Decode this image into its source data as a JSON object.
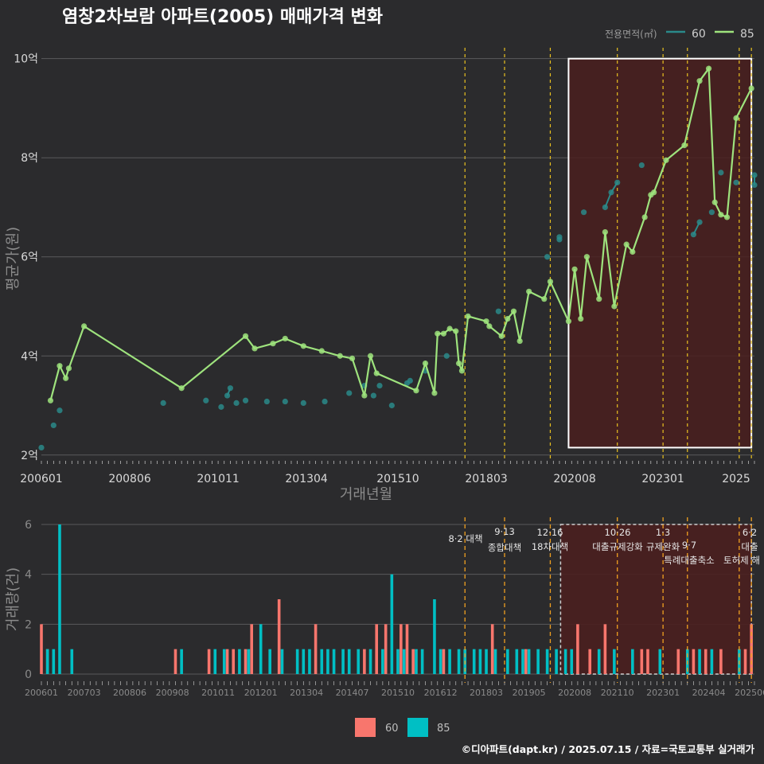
{
  "title": "염창2차보람 아파트(2005) 매매가격 변화",
  "footer": "©디아파트(dapt.kr) / 2025.07.15 / 자료=국토교통부 실거래가",
  "colors": {
    "background": "#2b2b2d",
    "grid": "#5a5a5c",
    "s60": "#2a8a8a",
    "s85": "#9ee37d",
    "bar60": "#f8766d",
    "bar85": "#00bfc4",
    "policy_line": "#e8c020",
    "highlight_fill": "#4a1f1f",
    "highlight_border": "#ffffff"
  },
  "chart_data": [
    {
      "type": "line",
      "name": "price",
      "ylabel": "평균가(원)",
      "xlabel": "거래년월",
      "legend_title": "전용면적(㎡)",
      "legend_position": "top-right",
      "xlim": [
        "2006-01",
        "2025-07"
      ],
      "ylim": [
        1.9,
        10.3
      ],
      "x_ticks": [
        "200601",
        "200806",
        "201011",
        "201304",
        "201510",
        "201803",
        "202008",
        "202301",
        "2025"
      ],
      "y_ticks": [
        2,
        4,
        6,
        8,
        10
      ],
      "y_tick_labels": [
        "2억",
        "4억",
        "6억",
        "8억",
        "10억"
      ],
      "grid": true,
      "highlight_range": [
        "2020-06",
        "2025-06"
      ],
      "highlight_y": [
        2.15,
        10.0
      ],
      "policy_dates": [
        "2017-08",
        "2018-09",
        "2019-12",
        "2021-10",
        "2023-01",
        "2023-09",
        "2025-02",
        "2025-06"
      ],
      "series": [
        {
          "name": "60",
          "values": [
            [
              "2006-01",
              2.15
            ],
            [
              "2006-05",
              2.6
            ],
            [
              "2006-07",
              2.9
            ],
            [
              "2009-05",
              3.05
            ],
            [
              "2010-07",
              3.1
            ],
            [
              "2010-12",
              2.97
            ],
            [
              "2011-02",
              3.2
            ],
            [
              "2011-03",
              3.35
            ],
            [
              "2011-05",
              3.05
            ],
            [
              "2011-08",
              3.1
            ],
            [
              "2012-03",
              3.08
            ],
            [
              "2012-09",
              3.08
            ],
            [
              "2013-03",
              3.05
            ],
            [
              "2013-10",
              3.08
            ],
            [
              "2014-06",
              3.25
            ],
            [
              "2014-11",
              3.4
            ],
            [
              "2015-02",
              3.2
            ],
            [
              "2015-04",
              3.4
            ],
            [
              "2015-08",
              3.0
            ],
            [
              "2016-01",
              3.45
            ],
            [
              "2016-02",
              3.5
            ],
            [
              "2016-07",
              3.7
            ],
            [
              "2017-02",
              4.0
            ],
            [
              "2018-07",
              4.9
            ],
            [
              "2019-11",
              6.0
            ],
            [
              "2020-03",
              6.35
            ],
            [
              "2020-03",
              6.4
            ],
            [
              "2020-11",
              6.9
            ],
            [
              "2021-06",
              7.0
            ],
            [
              "2021-08",
              7.3
            ],
            [
              "2021-10",
              7.5
            ],
            [
              "2022-06",
              7.85
            ],
            [
              "2023-11",
              6.45
            ],
            [
              "2024-01",
              6.7
            ],
            [
              "2024-05",
              6.9
            ],
            [
              "2024-08",
              7.7
            ],
            [
              "2025-01",
              7.5
            ],
            [
              "2025-07",
              7.45
            ],
            [
              "2025-07",
              7.65
            ]
          ]
        },
        {
          "name": "85",
          "values": [
            [
              "2006-04",
              3.1
            ],
            [
              "2006-07",
              3.8
            ],
            [
              "2006-09",
              3.55
            ],
            [
              "2006-10",
              3.75
            ],
            [
              "2007-03",
              4.6
            ],
            [
              "2009-11",
              3.35
            ],
            [
              "2011-08",
              4.4
            ],
            [
              "2011-11",
              4.15
            ],
            [
              "2012-05",
              4.25
            ],
            [
              "2012-09",
              4.35
            ],
            [
              "2013-03",
              4.2
            ],
            [
              "2013-09",
              4.1
            ],
            [
              "2014-03",
              4.0
            ],
            [
              "2014-07",
              3.95
            ],
            [
              "2014-11",
              3.2
            ],
            [
              "2015-01",
              4.0
            ],
            [
              "2015-03",
              3.65
            ],
            [
              "2016-04",
              3.3
            ],
            [
              "2016-07",
              3.85
            ],
            [
              "2016-10",
              3.25
            ],
            [
              "2016-11",
              4.45
            ],
            [
              "2017-01",
              4.45
            ],
            [
              "2017-03",
              4.55
            ],
            [
              "2017-05",
              4.5
            ],
            [
              "2017-06",
              3.85
            ],
            [
              "2017-07",
              3.7
            ],
            [
              "2017-09",
              4.8
            ],
            [
              "2018-03",
              4.7
            ],
            [
              "2018-04",
              4.6
            ],
            [
              "2018-08",
              4.4
            ],
            [
              "2018-10",
              4.75
            ],
            [
              "2018-12",
              4.9
            ],
            [
              "2019-02",
              4.3
            ],
            [
              "2019-05",
              5.3
            ],
            [
              "2019-10",
              5.15
            ],
            [
              "2019-12",
              5.5
            ],
            [
              "2020-06",
              4.7
            ],
            [
              "2020-08",
              5.75
            ],
            [
              "2020-10",
              4.75
            ],
            [
              "2020-12",
              6.0
            ],
            [
              "2021-04",
              5.15
            ],
            [
              "2021-06",
              6.5
            ],
            [
              "2021-09",
              5.0
            ],
            [
              "2022-01",
              6.25
            ],
            [
              "2022-03",
              6.1
            ],
            [
              "2022-07",
              6.8
            ],
            [
              "2022-09",
              7.25
            ],
            [
              "2022-10",
              7.3
            ],
            [
              "2023-02",
              7.95
            ],
            [
              "2023-08",
              8.25
            ],
            [
              "2024-01",
              9.55
            ],
            [
              "2024-04",
              9.8
            ],
            [
              "2024-06",
              7.1
            ],
            [
              "2024-08",
              6.85
            ],
            [
              "2024-10",
              6.8
            ],
            [
              "2025-01",
              8.8
            ],
            [
              "2025-06",
              9.4
            ]
          ]
        }
      ]
    },
    {
      "type": "bar",
      "name": "volume",
      "ylabel": "거래량(건)",
      "ylim": [
        0,
        6
      ],
      "y_ticks": [
        0,
        2,
        4,
        6
      ],
      "x_ticks": [
        "200601",
        "200703",
        "200806",
        "200908",
        "201011",
        "201201",
        "201304",
        "201407",
        "201510",
        "201612",
        "201803",
        "201905",
        "202008",
        "202110",
        "202301",
        "202404",
        "202506"
      ],
      "legend_position": "bottom",
      "series": [
        {
          "name": "60",
          "values": [
            [
              "2006-01",
              2
            ],
            [
              "2006-03",
              1
            ],
            [
              "2009-09",
              1
            ],
            [
              "2010-08",
              1
            ],
            [
              "2011-02",
              1
            ],
            [
              "2011-04",
              1
            ],
            [
              "2011-08",
              1
            ],
            [
              "2011-10",
              2
            ],
            [
              "2012-07",
              3
            ],
            [
              "2013-07",
              2
            ],
            [
              "2014-11",
              1
            ],
            [
              "2015-03",
              2
            ],
            [
              "2015-06",
              2
            ],
            [
              "2015-11",
              2
            ],
            [
              "2016-01",
              2
            ],
            [
              "2016-03",
              1
            ],
            [
              "2017-01",
              1
            ],
            [
              "2018-05",
              2
            ],
            [
              "2019-04",
              1
            ],
            [
              "2020-09",
              2
            ],
            [
              "2021-01",
              1
            ],
            [
              "2021-06",
              2
            ],
            [
              "2022-06",
              1
            ],
            [
              "2022-08",
              1
            ],
            [
              "2023-06",
              1
            ],
            [
              "2023-11",
              1
            ],
            [
              "2024-03",
              1
            ],
            [
              "2024-08",
              1
            ],
            [
              "2025-04",
              1
            ],
            [
              "2025-06",
              2
            ]
          ]
        },
        {
          "name": "85",
          "values": [
            [
              "2006-03",
              1
            ],
            [
              "2006-05",
              1
            ],
            [
              "2006-07",
              6
            ],
            [
              "2006-11",
              1
            ],
            [
              "2009-11",
              1
            ],
            [
              "2010-10",
              1
            ],
            [
              "2011-01",
              1
            ],
            [
              "2011-06",
              1
            ],
            [
              "2011-09",
              1
            ],
            [
              "2012-01",
              2
            ],
            [
              "2012-04",
              1
            ],
            [
              "2012-08",
              1
            ],
            [
              "2013-01",
              1
            ],
            [
              "2013-03",
              1
            ],
            [
              "2013-05",
              1
            ],
            [
              "2013-09",
              1
            ],
            [
              "2013-11",
              1
            ],
            [
              "2014-01",
              1
            ],
            [
              "2014-04",
              1
            ],
            [
              "2014-06",
              1
            ],
            [
              "2014-09",
              1
            ],
            [
              "2015-01",
              1
            ],
            [
              "2015-05",
              1
            ],
            [
              "2015-08",
              4
            ],
            [
              "2015-10",
              1
            ],
            [
              "2015-12",
              1
            ],
            [
              "2016-04",
              1
            ],
            [
              "2016-06",
              1
            ],
            [
              "2016-10",
              3
            ],
            [
              "2016-12",
              1
            ],
            [
              "2017-03",
              1
            ],
            [
              "2017-06",
              1
            ],
            [
              "2017-08",
              1
            ],
            [
              "2017-11",
              1
            ],
            [
              "2018-01",
              1
            ],
            [
              "2018-03",
              1
            ],
            [
              "2018-06",
              1
            ],
            [
              "2018-10",
              1
            ],
            [
              "2019-01",
              1
            ],
            [
              "2019-03",
              1
            ],
            [
              "2019-05",
              1
            ],
            [
              "2019-08",
              1
            ],
            [
              "2019-11",
              1
            ],
            [
              "2020-02",
              1
            ],
            [
              "2020-05",
              1
            ],
            [
              "2020-07",
              1
            ],
            [
              "2021-04",
              1
            ],
            [
              "2021-09",
              1
            ],
            [
              "2022-03",
              1
            ],
            [
              "2022-12",
              1
            ],
            [
              "2023-09",
              1
            ],
            [
              "2024-01",
              1
            ],
            [
              "2024-05",
              1
            ],
            [
              "2025-02",
              1
            ]
          ]
        }
      ],
      "annotations": [
        {
          "date": "2017-08",
          "lines": [
            "8·2 대책"
          ]
        },
        {
          "date": "2018-09",
          "lines": [
            "9·13",
            "종합대책"
          ]
        },
        {
          "date": "2019-12",
          "lines": [
            "12·16",
            "18차대책"
          ]
        },
        {
          "date": "2021-10",
          "lines": [
            "10·26",
            "대출규제강화"
          ]
        },
        {
          "date": "2023-01",
          "lines": [
            "1·3",
            "규제완화"
          ]
        },
        {
          "date": "2023-09",
          "lines": [
            "9·7",
            "특례대출축소"
          ]
        },
        {
          "date": "2025-02",
          "lines": [
            "",
            "토허제 해"
          ]
        },
        {
          "date": "2025-06",
          "lines": [
            "6·2",
            "대출"
          ]
        }
      ]
    }
  ]
}
